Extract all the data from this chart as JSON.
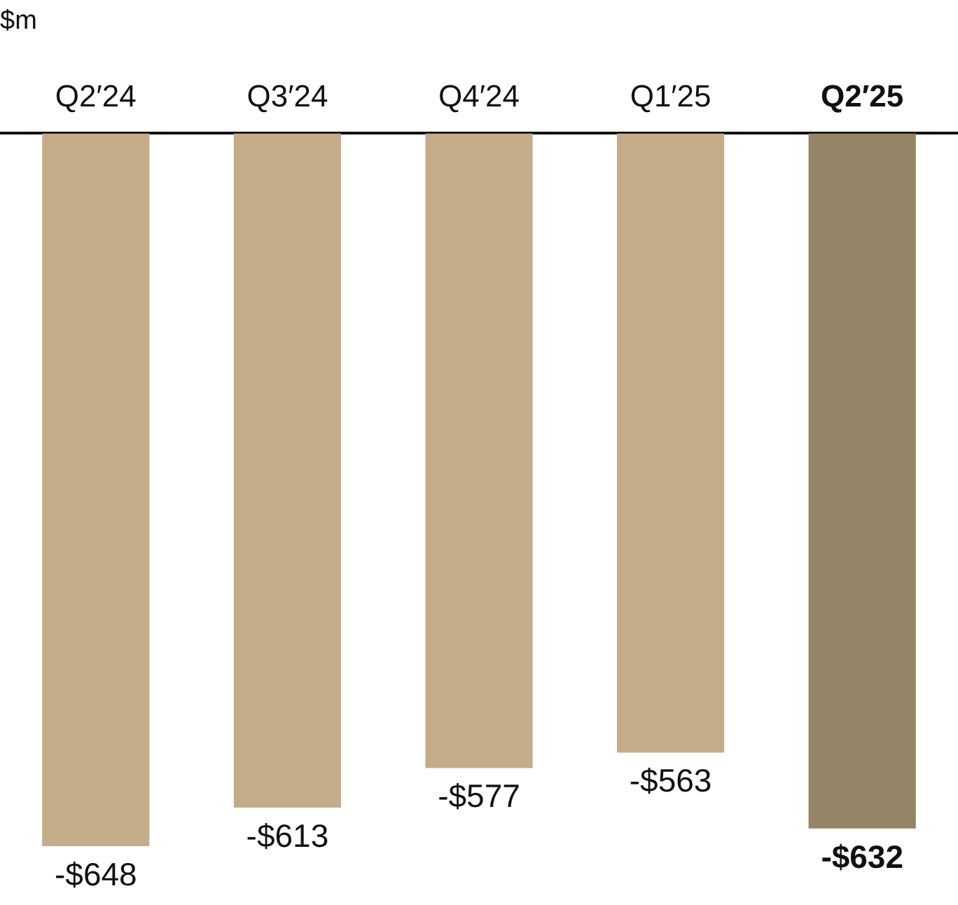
{
  "chart_data": {
    "type": "bar",
    "ylabel": "$m",
    "categories": [
      "Q2′24",
      "Q3′24",
      "Q4′24",
      "Q1′25",
      "Q2′25"
    ],
    "values": [
      -648,
      -613,
      -577,
      -563,
      -632
    ],
    "colors": [
      "#c4ac89",
      "#c4ac89",
      "#c4ac89",
      "#c4ac89",
      "#948466"
    ],
    "value_labels": [
      "-$648",
      "-$613",
      "-$577",
      "-$563",
      "-$632"
    ],
    "grid": false,
    "legend": false
  }
}
